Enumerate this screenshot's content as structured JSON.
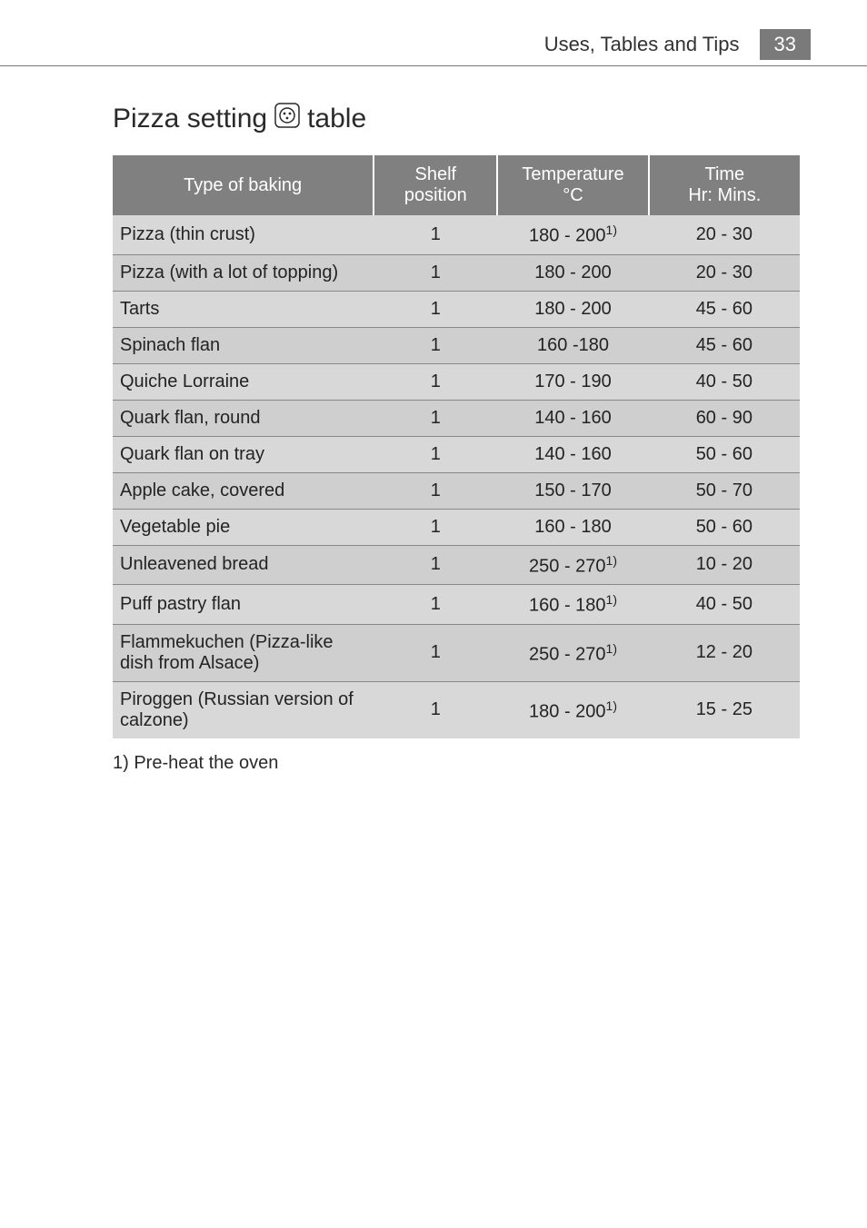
{
  "header": {
    "section": "Uses, Tables and Tips",
    "page_number": "33"
  },
  "title": {
    "before": "Pizza setting ",
    "after": " table"
  },
  "columns": {
    "type": "Type of baking",
    "shelf": "Shelf position",
    "temp_line1": "Temperature",
    "temp_line2": "°C",
    "time_line1": "Time",
    "time_line2": "Hr: Mins."
  },
  "rows": [
    {
      "type": "Pizza (thin crust)",
      "shelf": "1",
      "temp": "180 - 200",
      "temp_sup": "1)",
      "time": "20 - 30",
      "shade": "a"
    },
    {
      "type": "Pizza (with a lot of topping)",
      "shelf": "1",
      "temp": "180 - 200",
      "temp_sup": "",
      "time": "20 - 30",
      "shade": "b"
    },
    {
      "type": "Tarts",
      "shelf": "1",
      "temp": "180 - 200",
      "temp_sup": "",
      "time": "45 - 60",
      "shade": "a"
    },
    {
      "type": "Spinach flan",
      "shelf": "1",
      "temp": "160 -180",
      "temp_sup": "",
      "time": "45 - 60",
      "shade": "b"
    },
    {
      "type": "Quiche Lorraine",
      "shelf": "1",
      "temp": "170 - 190",
      "temp_sup": "",
      "time": "40 - 50",
      "shade": "a"
    },
    {
      "type": "Quark flan, round",
      "shelf": "1",
      "temp": "140 - 160",
      "temp_sup": "",
      "time": "60 - 90",
      "shade": "b"
    },
    {
      "type": "Quark flan on tray",
      "shelf": "1",
      "temp": "140 - 160",
      "temp_sup": "",
      "time": "50 - 60",
      "shade": "a"
    },
    {
      "type": "Apple cake, covered",
      "shelf": "1",
      "temp": "150 - 170",
      "temp_sup": "",
      "time": "50 - 70",
      "shade": "b"
    },
    {
      "type": "Vegetable pie",
      "shelf": "1",
      "temp": "160 - 180",
      "temp_sup": "",
      "time": "50 - 60",
      "shade": "a"
    },
    {
      "type": "Unleavened bread",
      "shelf": "1",
      "temp": "250 - 270",
      "temp_sup": "1)",
      "time": "10 - 20",
      "shade": "b"
    },
    {
      "type": "Puff pastry flan",
      "shelf": "1",
      "temp": "160 - 180",
      "temp_sup": "1)",
      "time": "40 - 50",
      "shade": "a"
    },
    {
      "type": "Flammekuchen (Pizza-like dish from Alsace)",
      "shelf": "1",
      "temp": "250 - 270",
      "temp_sup": "1)",
      "time": "12 - 20",
      "shade": "b"
    },
    {
      "type": "Piroggen (Russian version of calzone)",
      "shelf": "1",
      "temp": "180 - 200",
      "temp_sup": "1)",
      "time": "15 - 25",
      "shade": "a"
    }
  ],
  "footnote": "1) Pre-heat the oven",
  "style": {
    "header_bg": "#808080",
    "header_fg": "#ffffff",
    "shade_a": "#d8d8d8",
    "shade_b": "#cfcfcf",
    "border_color": "#888888",
    "title_fontsize": 30,
    "body_fontsize": 20,
    "col_widths_pct": [
      38,
      18,
      22,
      22
    ]
  }
}
